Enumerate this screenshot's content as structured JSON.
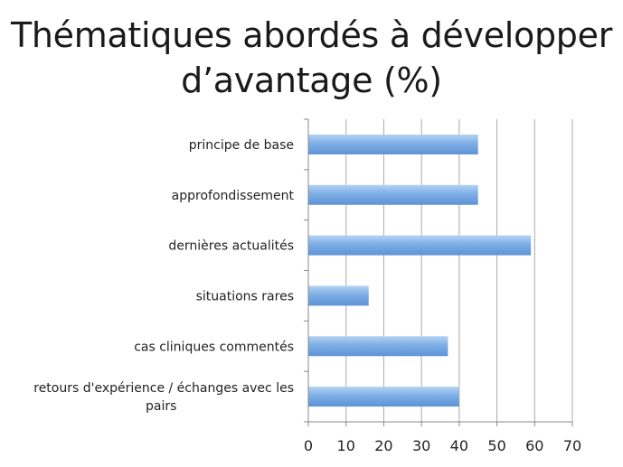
{
  "title_lines": [
    "Thématiques abordés à développer",
    "d’avantage (%)"
  ],
  "chart_data": {
    "type": "bar",
    "orientation": "horizontal",
    "title": "Thématiques abordés à développer d’avantage (%)",
    "categories": [
      "principe de base",
      "approfondissement",
      "dernières actualités",
      "situations rares",
      "cas cliniques commentés",
      "retours d'expérience / échanges avec les pairs"
    ],
    "category_lines": [
      [
        "principe de base"
      ],
      [
        "approfondissement"
      ],
      [
        "dernières actualités"
      ],
      [
        "situations rares"
      ],
      [
        "cas cliniques commentés"
      ],
      [
        "retours d'expérience / échanges avec les",
        "pairs"
      ]
    ],
    "values": [
      45,
      45,
      59,
      16,
      37,
      40
    ],
    "xlim": [
      0,
      70
    ],
    "xticks": [
      0,
      10,
      20,
      30,
      40,
      50,
      60,
      70
    ],
    "xlabel": "",
    "ylabel": "",
    "grid": "vertical",
    "legend": "none",
    "bar_color": "#7eaee6"
  }
}
